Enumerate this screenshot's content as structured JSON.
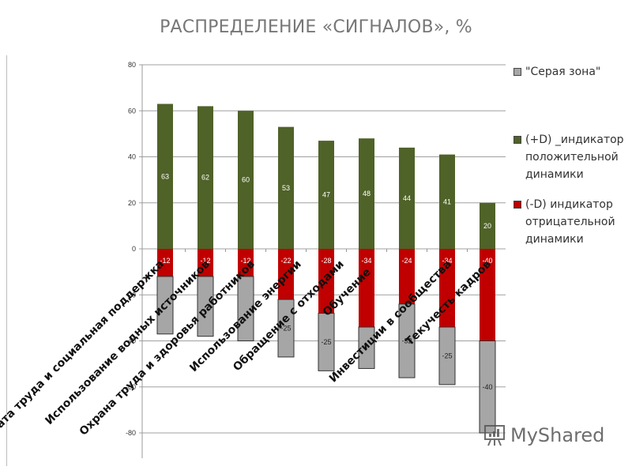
{
  "title": "РАСПРЕДЕЛЕНИЕ «СИГНАЛОВ», %",
  "watermark": "MyShared",
  "legend": {
    "items": [
      {
        "label": "\"Серая зона\"",
        "color": "#a6a6a6"
      },
      {
        "label": "(+D) _индикатор\nположительной\nдинамики",
        "color": "#4f6228"
      },
      {
        "label": "(-D) индикатор\nотрицательной\nдинамики",
        "color": "#c00000"
      }
    ]
  },
  "chart_data": {
    "type": "bar",
    "stacked": true,
    "title": "РАСПРЕДЕЛЕНИЕ «СИГНАЛОВ», %",
    "xlabel": "",
    "ylabel": "",
    "ylim": [
      -80,
      80
    ],
    "yticks": [
      80,
      60,
      40,
      20,
      0,
      -20,
      -40,
      -60,
      -80
    ],
    "grid": true,
    "legend_position": "right",
    "categories": [
      "Оплата труда и социальная поддержка",
      "Использование водных источников",
      "Охрана труда и здоровья работников",
      "Использование энергии",
      "Обращение с отходами",
      "Обучение",
      "Инвестиции в сообщества",
      "Текучесть кадров",
      "Текучесть кадров "
    ],
    "series": [
      {
        "name": "(+D) _индикатор положительной динамики",
        "color": "#4f6228",
        "values": [
          63,
          62,
          60,
          53,
          47,
          48,
          44,
          41,
          20
        ],
        "labels": [
          "63",
          "62",
          "60",
          "53",
          "47",
          "48",
          "44",
          "41",
          "20"
        ]
      },
      {
        "name": "(-D) индикатор отрицательной динамики",
        "color": "#c00000",
        "values": [
          -12,
          -12,
          -12,
          -22,
          -28,
          -34,
          -24,
          -34,
          -40
        ],
        "labels": [
          "-12",
          "-12",
          "-12",
          "-22",
          "-28",
          "-34",
          "-24",
          "-34",
          "-40"
        ]
      },
      {
        "name": "\"Серая зона\"",
        "color": "#a6a6a6",
        "values": [
          -25,
          -26,
          -28,
          -25,
          -25,
          -18,
          -32,
          -25,
          -40
        ],
        "labels": [
          "",
          "",
          "",
          "-25",
          "-25",
          "",
          "-32",
          "-25",
          "-40"
        ]
      }
    ],
    "category_labels_display": [
      "Оплата труда и социальная поддержка",
      "Использование водных источников",
      "Охрана труда и здоровья работников",
      "Использование энергии",
      "Обращение с отходами",
      "Обучение",
      "Инвестиции в сообщества",
      "Текучесть кадров"
    ]
  }
}
